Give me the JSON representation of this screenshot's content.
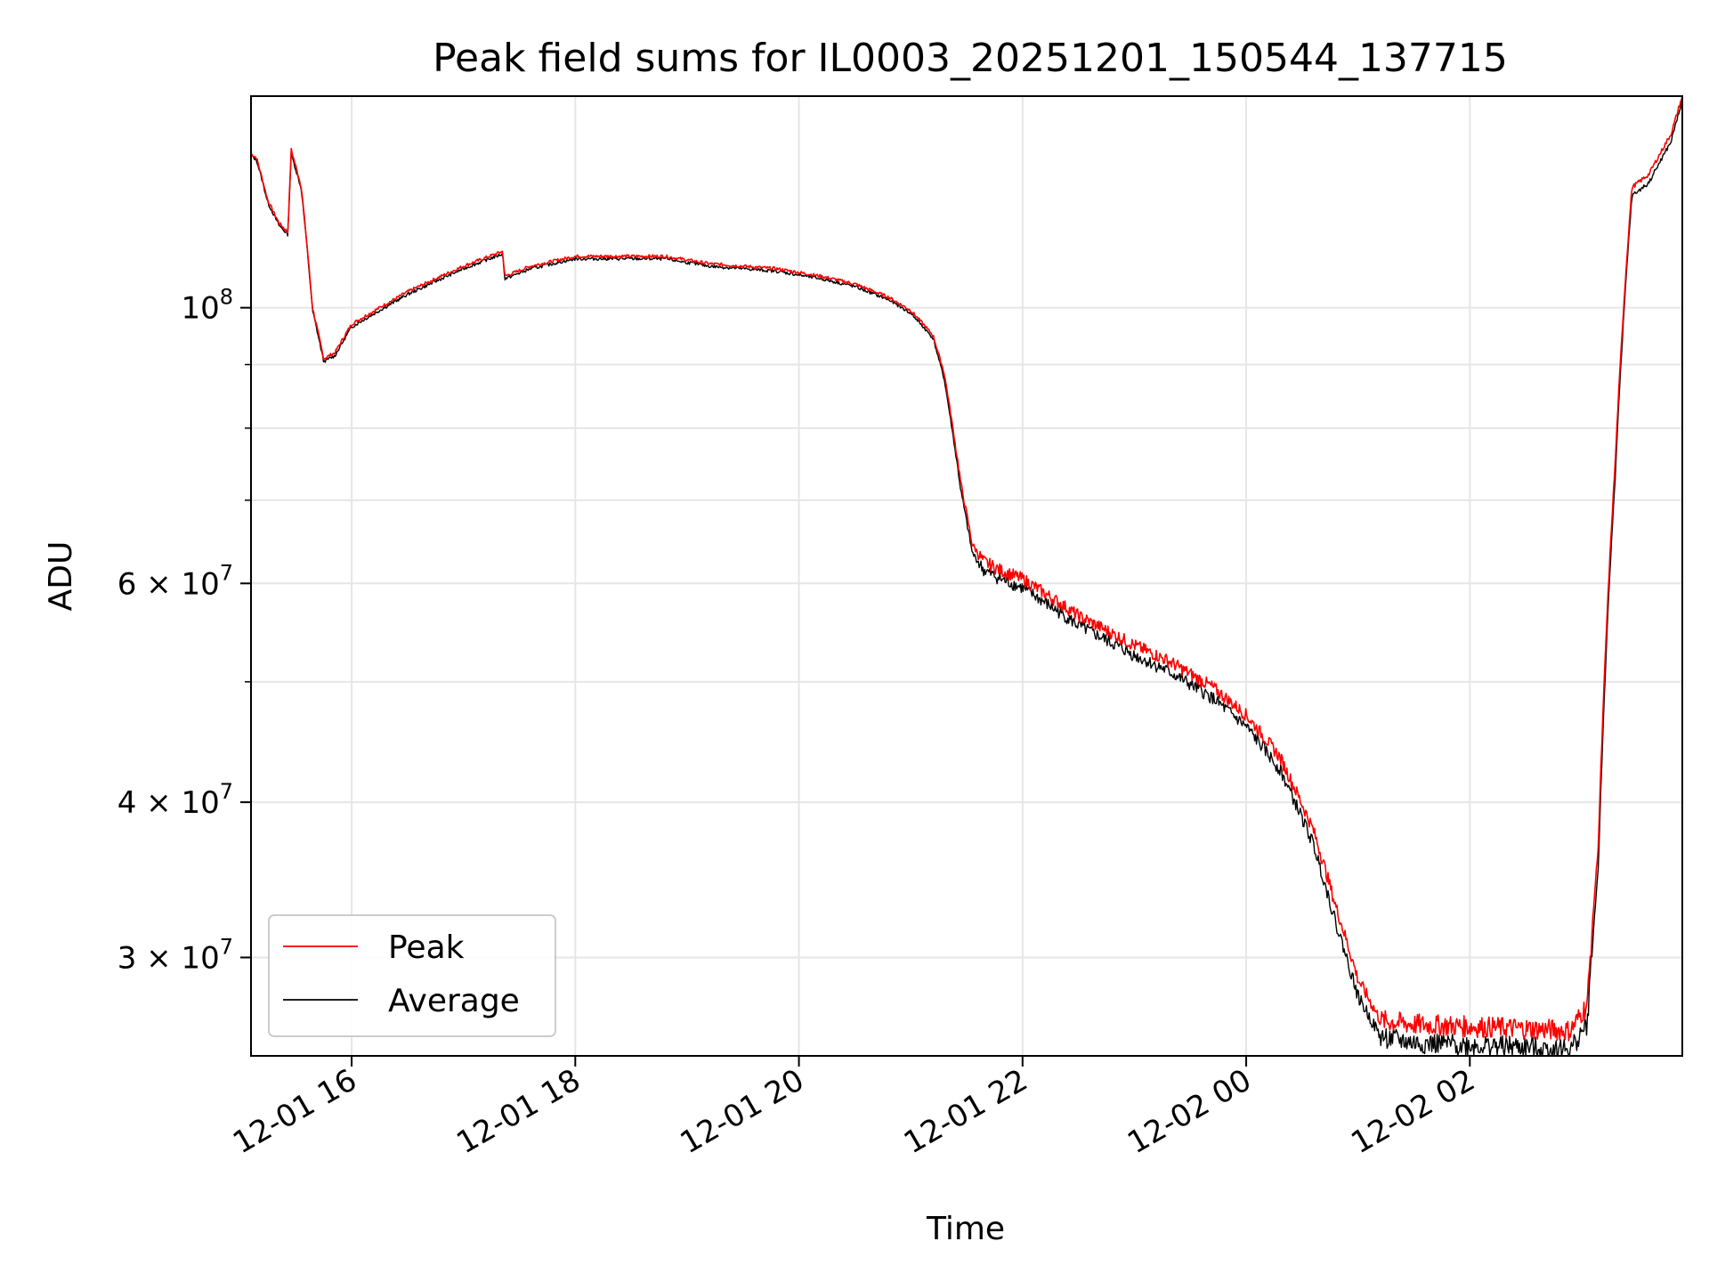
{
  "chart_data": {
    "type": "line",
    "title": "Peak field sums for IL0003_20251201_150544_137715",
    "xlabel": "Time",
    "ylabel": "ADU",
    "yscale": "log",
    "grid": true,
    "legend_position": "lower-left",
    "x_unit": "hours since 12-01 00:00",
    "xlim": [
      15.1,
      27.9
    ],
    "ylim": [
      25000000,
      148000000
    ],
    "x_ticks": [
      {
        "value": 16,
        "label": "12-01 16"
      },
      {
        "value": 18,
        "label": "12-01 18"
      },
      {
        "value": 20,
        "label": "12-01 20"
      },
      {
        "value": 22,
        "label": "12-01 22"
      },
      {
        "value": 24,
        "label": "12-02 00"
      },
      {
        "value": 26,
        "label": "12-02 02"
      }
    ],
    "y_major_ticks": [
      {
        "value": 30000000,
        "base": "3",
        "exp": "7"
      },
      {
        "value": 40000000,
        "base": "4",
        "exp": "7"
      },
      {
        "value": 60000000,
        "base": "6",
        "exp": "7"
      },
      {
        "value": 100000000,
        "base": "",
        "exp": "8"
      }
    ],
    "y_minor_gridlines": [
      50000000,
      70000000,
      80000000,
      90000000
    ],
    "series": [
      {
        "name": "Peak",
        "color": "#ff0000",
        "x": [
          15.1,
          15.15,
          15.25,
          15.35,
          15.43,
          15.46,
          15.55,
          15.65,
          15.75,
          15.85,
          16.0,
          16.5,
          17.0,
          17.35,
          17.37,
          17.6,
          18.0,
          18.3,
          18.8,
          19.2,
          19.8,
          20.2,
          20.5,
          20.8,
          21.0,
          21.2,
          21.3,
          21.45,
          21.55,
          21.65,
          21.8,
          22.0,
          22.5,
          23.0,
          23.3,
          23.7,
          24.0,
          24.3,
          24.6,
          24.8,
          25.0,
          25.2,
          25.5,
          26.0,
          26.5,
          26.9,
          27.05,
          27.15,
          27.3,
          27.45,
          27.6,
          27.8,
          27.9
        ],
        "values": [
          133000000,
          132000000,
          122000000,
          117000000,
          115000000,
          134000000,
          125000000,
          100000000,
          91000000,
          92000000,
          97000000,
          103000000,
          108000000,
          111000000,
          106000000,
          108000000,
          110000000,
          110000000,
          110000000,
          108500000,
          107500000,
          106000000,
          104500000,
          102000000,
          99500000,
          95000000,
          88500000,
          72000000,
          64500000,
          62500000,
          61500000,
          60500000,
          56500000,
          53500000,
          52000000,
          49500000,
          47000000,
          43500000,
          38000000,
          33000000,
          28800000,
          26700000,
          26500000,
          26400000,
          26300000,
          26200000,
          27500000,
          37000000,
          75000000,
          125000000,
          128000000,
          138000000,
          148000000
        ]
      },
      {
        "name": "Average",
        "color": "#000000",
        "x": [
          15.1,
          15.15,
          15.25,
          15.35,
          15.43,
          15.46,
          15.55,
          15.65,
          15.75,
          15.85,
          16.0,
          16.5,
          17.0,
          17.35,
          17.37,
          17.6,
          18.0,
          18.3,
          18.8,
          19.2,
          19.8,
          20.2,
          20.5,
          20.8,
          21.0,
          21.2,
          21.3,
          21.45,
          21.55,
          21.65,
          21.8,
          22.0,
          22.5,
          23.0,
          23.3,
          23.7,
          24.0,
          24.3,
          24.6,
          24.8,
          25.0,
          25.2,
          25.5,
          26.0,
          26.5,
          26.9,
          27.05,
          27.15,
          27.3,
          27.45,
          27.6,
          27.8,
          27.9
        ],
        "values": [
          132500000,
          131500000,
          121500000,
          116500000,
          114500000,
          133000000,
          124500000,
          99500000,
          90500000,
          91500000,
          96500000,
          102500000,
          107500000,
          110500000,
          105500000,
          107500000,
          109500000,
          109500000,
          109500000,
          108000000,
          107000000,
          105500000,
          104000000,
          101500000,
          99000000,
          94500000,
          87500000,
          71000000,
          63500000,
          61500000,
          60500000,
          59500000,
          55500000,
          52500000,
          51000000,
          48500000,
          46000000,
          42500000,
          37000000,
          32000000,
          27900000,
          25900000,
          25600000,
          25500000,
          25400000,
          25300000,
          26500000,
          35500000,
          73000000,
          123000000,
          126000000,
          136000000,
          147000000
        ]
      }
    ]
  }
}
